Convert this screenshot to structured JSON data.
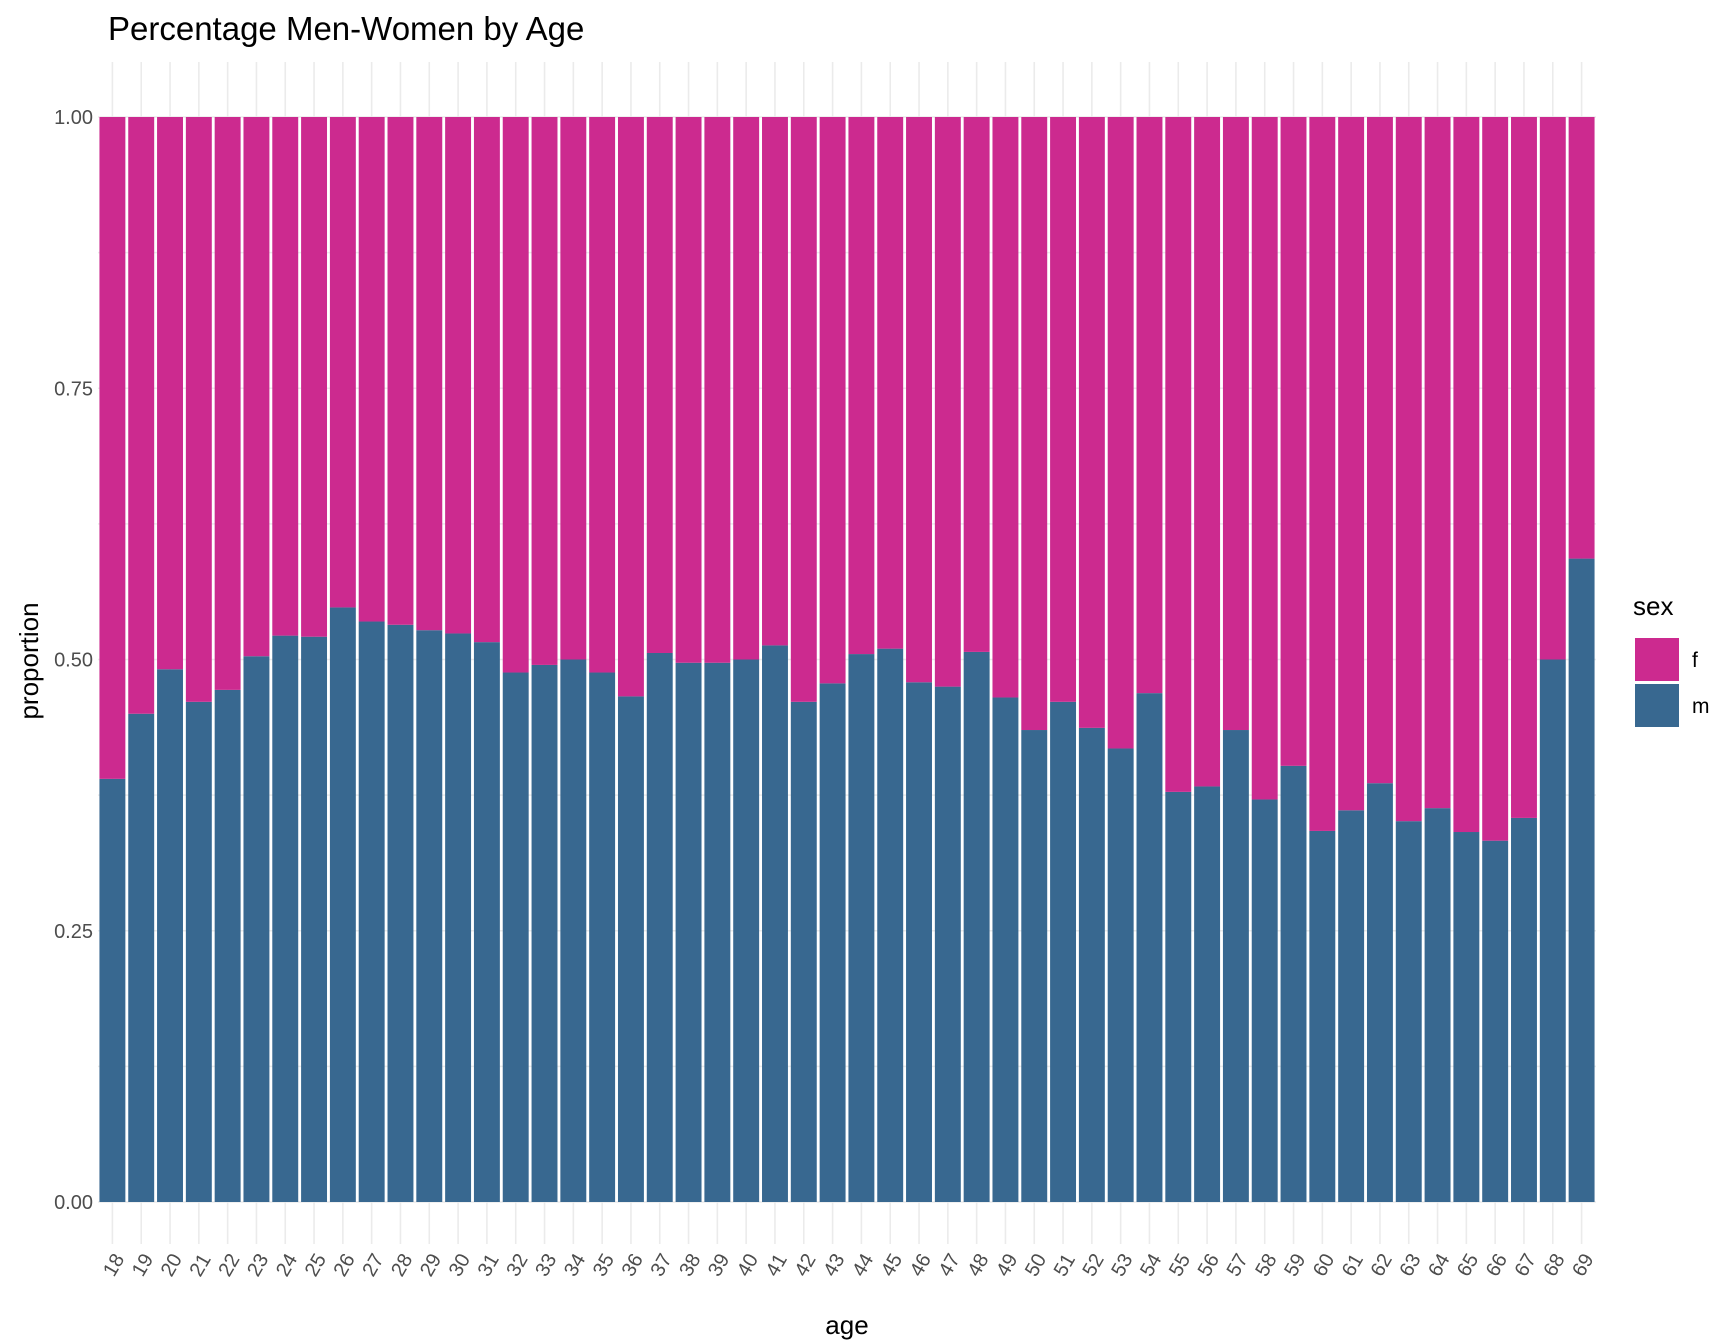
{
  "chart_data": {
    "type": "bar",
    "stacked": true,
    "title": "Percentage Men-Women by Age",
    "xlabel": "age",
    "ylabel": "proportion",
    "ylim": [
      0,
      1
    ],
    "yticks": [
      "0.00",
      "0.25",
      "0.50",
      "0.75",
      "1.00"
    ],
    "grid": true,
    "legend": {
      "title": "sex",
      "position": "right"
    },
    "categories": [
      "18",
      "19",
      "20",
      "21",
      "22",
      "23",
      "24",
      "25",
      "26",
      "27",
      "28",
      "29",
      "30",
      "31",
      "32",
      "33",
      "34",
      "35",
      "36",
      "37",
      "38",
      "39",
      "40",
      "41",
      "42",
      "43",
      "44",
      "45",
      "46",
      "47",
      "48",
      "49",
      "50",
      "51",
      "52",
      "53",
      "54",
      "55",
      "56",
      "57",
      "58",
      "59",
      "60",
      "61",
      "62",
      "63",
      "64",
      "65",
      "66",
      "67",
      "68",
      "69"
    ],
    "series": [
      {
        "name": "m",
        "color": "#386890",
        "values": [
          0.39,
          0.45,
          0.491,
          0.461,
          0.472,
          0.503,
          0.522,
          0.521,
          0.548,
          0.535,
          0.532,
          0.527,
          0.524,
          0.516,
          0.488,
          0.495,
          0.5,
          0.488,
          0.466,
          0.506,
          0.497,
          0.497,
          0.5,
          0.513,
          0.461,
          0.478,
          0.505,
          0.51,
          0.479,
          0.475,
          0.507,
          0.465,
          0.435,
          0.461,
          0.437,
          0.418,
          0.469,
          0.378,
          0.383,
          0.435,
          0.371,
          0.402,
          0.342,
          0.361,
          0.386,
          0.351,
          0.363,
          0.341,
          0.333,
          0.354,
          0.5,
          0.593
        ]
      },
      {
        "name": "f",
        "color": "#cc2a8f",
        "values": [
          0.61,
          0.55,
          0.509,
          0.539,
          0.528,
          0.497,
          0.478,
          0.479,
          0.452,
          0.465,
          0.468,
          0.473,
          0.476,
          0.484,
          0.512,
          0.505,
          0.5,
          0.512,
          0.534,
          0.494,
          0.503,
          0.503,
          0.5,
          0.487,
          0.539,
          0.522,
          0.495,
          0.49,
          0.521,
          0.525,
          0.493,
          0.535,
          0.565,
          0.539,
          0.563,
          0.582,
          0.531,
          0.622,
          0.617,
          0.565,
          0.629,
          0.598,
          0.658,
          0.639,
          0.614,
          0.649,
          0.637,
          0.659,
          0.667,
          0.646,
          0.5,
          0.407
        ]
      }
    ]
  }
}
